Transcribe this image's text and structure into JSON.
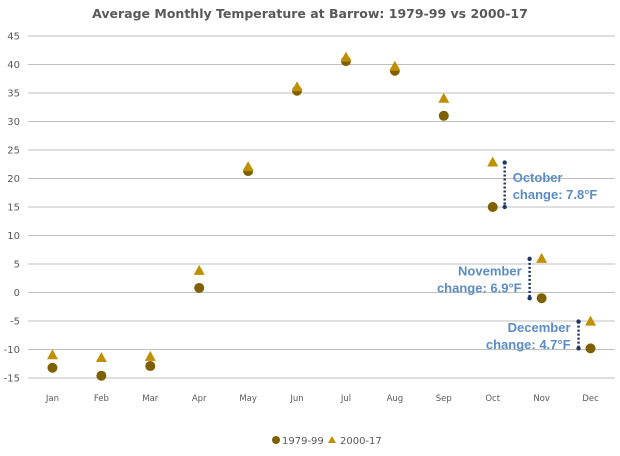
{
  "chart_data": {
    "type": "scatter",
    "title": "Average Monthly Temperature at Barrow: 1979-99 vs 2000-17",
    "xlabel": "",
    "ylabel": "",
    "categories": [
      "Jan",
      "Feb",
      "Mar",
      "Apr",
      "May",
      "Jun",
      "Jul",
      "Aug",
      "Sep",
      "Oct",
      "Nov",
      "Dec"
    ],
    "ylim": [
      -15,
      45
    ],
    "yticks": [
      45,
      40,
      35,
      30,
      25,
      20,
      15,
      10,
      5,
      0,
      -5,
      -10,
      -15
    ],
    "grid": true,
    "legend_position": "bottom",
    "series": [
      {
        "name": "1979-99",
        "marker": "circle",
        "color": "#7f6000",
        "values": [
          -13.2,
          -14.6,
          -12.9,
          0.8,
          21.3,
          35.4,
          40.6,
          38.9,
          31.0,
          15.0,
          -1.0,
          -9.8
        ]
      },
      {
        "name": "2000-17",
        "marker": "triangle",
        "color": "#bf9000",
        "values": [
          -11.0,
          -11.5,
          -11.3,
          3.8,
          22.0,
          36.0,
          41.2,
          39.6,
          34.0,
          22.8,
          5.9,
          -5.1
        ]
      }
    ],
    "annotations": [
      {
        "month": "Oct",
        "lines": [
          "October",
          "change: 7.8°F"
        ],
        "from": 15.0,
        "to": 22.8,
        "side": "right"
      },
      {
        "month": "Nov",
        "lines": [
          "November",
          "change: 6.9°F"
        ],
        "from": -1.0,
        "to": 5.9,
        "side": "left"
      },
      {
        "month": "Dec",
        "lines": [
          "December",
          "change: 4.7°F"
        ],
        "from": -9.8,
        "to": -5.1,
        "side": "left"
      }
    ],
    "colors": {
      "grid": "#bfbfbf",
      "annotation_text": "#5b8cc4",
      "annotation_line": "#1f3864",
      "text": "#595959"
    }
  }
}
